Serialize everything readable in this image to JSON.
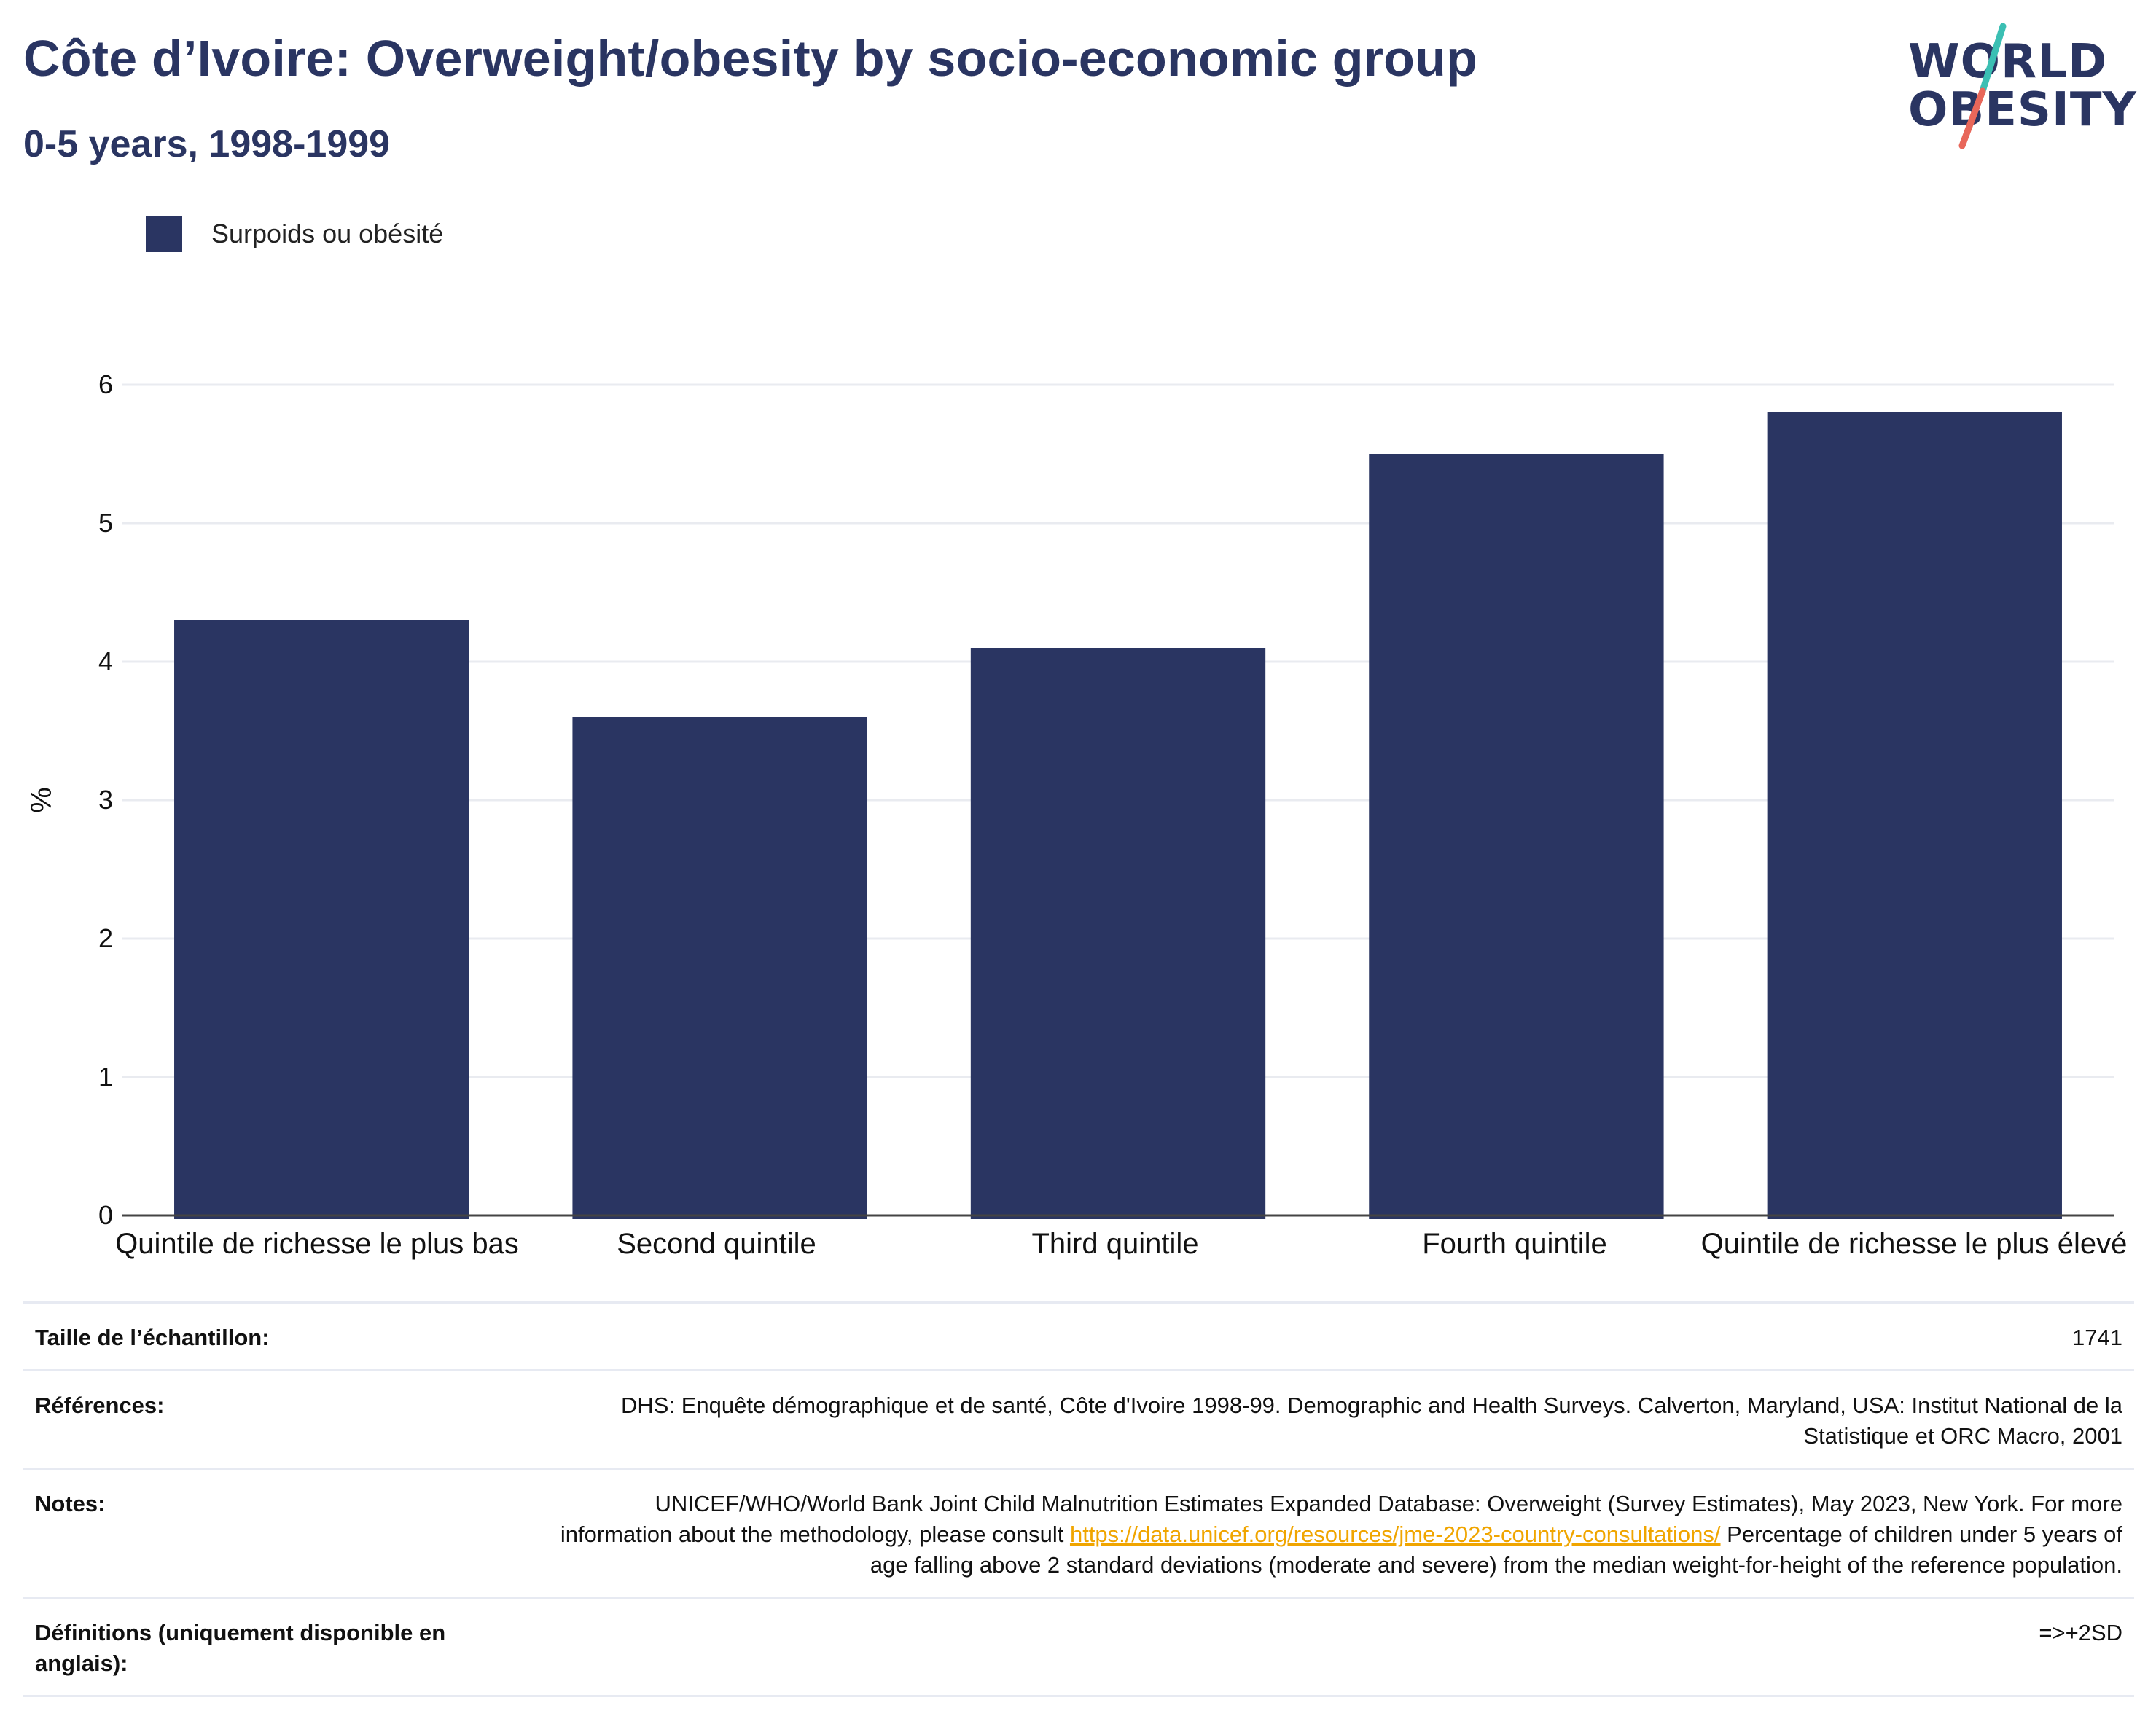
{
  "title": "Côte d’Ivoire: Overweight/obesity by socio-economic group",
  "subtitle": "0-5 years, 1998-1999",
  "logo": {
    "line1": "WORLD",
    "line2": "OBESITY",
    "accent_teal": "#3bbfb3",
    "accent_coral": "#e8675a"
  },
  "colors": {
    "bar": "#2a3562",
    "title": "#2a3562",
    "grid": "#e9ebf0",
    "link": "#f0a500"
  },
  "chart_data": {
    "type": "bar",
    "categories": [
      "Quintile de richesse le plus bas",
      "Second quintile",
      "Third quintile",
      "Fourth quintile",
      "Quintile de richesse le plus élevé"
    ],
    "series": [
      {
        "name": "Surpoids ou obésité",
        "values": [
          4.3,
          3.6,
          4.1,
          5.5,
          5.8
        ]
      }
    ],
    "ylabel": "%",
    "xlabel": "",
    "ylim": [
      0,
      6
    ],
    "yticks": [
      0,
      1,
      2,
      3,
      4,
      5,
      6
    ],
    "grid": true,
    "legend": "top-left"
  },
  "meta": {
    "sample_label": "Taille de l’échantillon:",
    "sample_value": "1741",
    "references_label": "Références:",
    "references_value": "DHS: Enquête démographique et de santé, Côte d'Ivoire 1998-99. Demographic and Health Surveys. Calverton, Maryland, USA: Institut National de la Statistique et ORC Macro, 2001",
    "notes_label": "Notes:",
    "notes_text_before": "UNICEF/WHO/World Bank Joint Child Malnutrition Estimates Expanded Database: Overweight (Survey Estimates), May 2023, New York. For more information about the methodology, please consult ",
    "notes_link": "https://data.unicef.org/resources/jme-2023-country-consultations/",
    "notes_text_after": "Percentage of children under 5 years of age falling above 2 standard deviations (moderate and severe) from the median weight-for-height of the reference population.",
    "definitions_label": "Définitions (uniquement disponible en anglais):",
    "definitions_value": "=>+2SD"
  }
}
